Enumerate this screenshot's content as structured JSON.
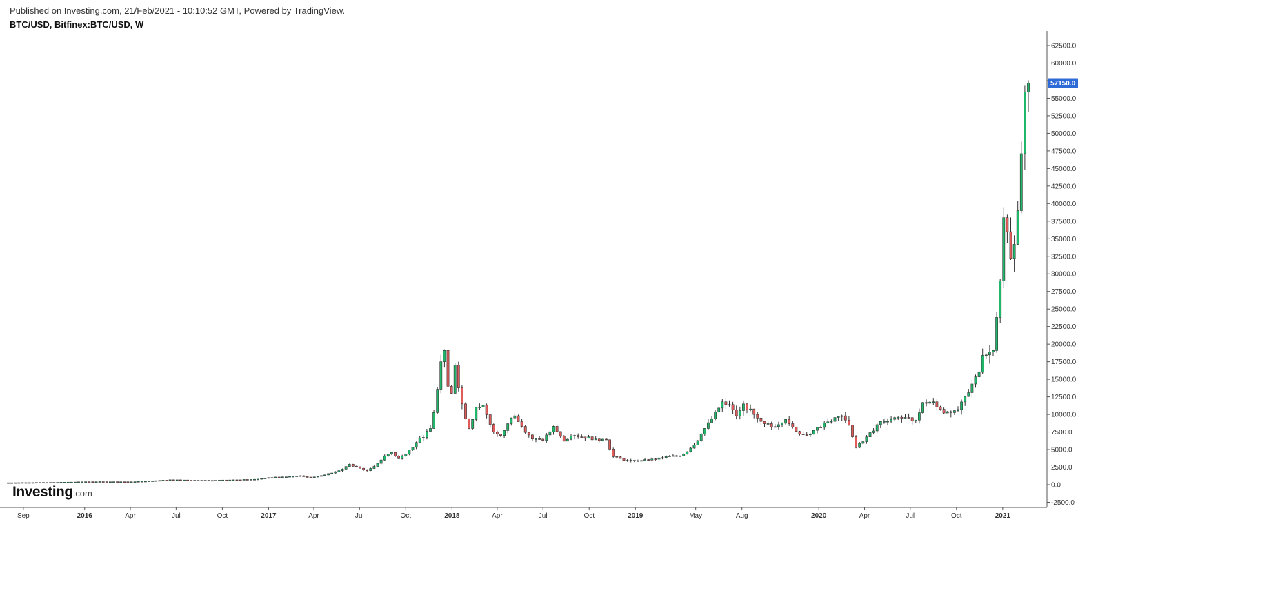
{
  "header": {
    "published": "Published on Investing.com, 21/Feb/2021 - 10:10:52 GMT, Powered by TradingView.",
    "symbol": "BTC/USD, Bitfinex:BTC/USD, W"
  },
  "logo": {
    "main": "Investing",
    "domain": ".com"
  },
  "colors": {
    "up": "#1fb86a",
    "down": "#e25b5b",
    "wick": "#333333",
    "last_price_bg": "#2f6bd6",
    "last_price_line": "#2f6bd6"
  },
  "chart_data": {
    "type": "candlestick",
    "title": "BTC/USD, Bitfinex:BTC/USD, W",
    "interval": "weekly",
    "y_axis": {
      "side": "right",
      "min": -2500,
      "max": 62500,
      "ticks": [
        "-2500.0",
        "0.0",
        "2500.0",
        "5000.0",
        "7500.0",
        "10000.0",
        "12500.0",
        "15000.0",
        "17500.0",
        "20000.0",
        "22500.0",
        "25000.0",
        "27500.0",
        "30000.0",
        "32500.0",
        "35000.0",
        "37500.0",
        "40000.0",
        "42500.0",
        "45000.0",
        "47500.0",
        "50000.0",
        "52500.0",
        "55000.0",
        "57500.0",
        "60000.0",
        "62500.0"
      ]
    },
    "x_axis": {
      "start": "2015-08-02",
      "end": "2021-02-21",
      "ticks": [
        {
          "label": "Sep",
          "date": "2015-09-01",
          "bold": false
        },
        {
          "label": "2016",
          "date": "2016-01-01",
          "bold": true
        },
        {
          "label": "Apr",
          "date": "2016-04-01",
          "bold": false
        },
        {
          "label": "Jul",
          "date": "2016-07-01",
          "bold": false
        },
        {
          "label": "Oct",
          "date": "2016-10-01",
          "bold": false
        },
        {
          "label": "2017",
          "date": "2017-01-01",
          "bold": true
        },
        {
          "label": "Apr",
          "date": "2017-04-01",
          "bold": false
        },
        {
          "label": "Jul",
          "date": "2017-07-01",
          "bold": false
        },
        {
          "label": "Oct",
          "date": "2017-10-01",
          "bold": false
        },
        {
          "label": "2018",
          "date": "2018-01-01",
          "bold": true
        },
        {
          "label": "Apr",
          "date": "2018-04-01",
          "bold": false
        },
        {
          "label": "Jul",
          "date": "2018-07-01",
          "bold": false
        },
        {
          "label": "Oct",
          "date": "2018-10-01",
          "bold": false
        },
        {
          "label": "2019",
          "date": "2019-01-01",
          "bold": true
        },
        {
          "label": "May",
          "date": "2019-05-01",
          "bold": false
        },
        {
          "label": "Aug",
          "date": "2019-08-01",
          "bold": false
        },
        {
          "label": "2020",
          "date": "2020-01-01",
          "bold": true
        },
        {
          "label": "Apr",
          "date": "2020-04-01",
          "bold": false
        },
        {
          "label": "Jul",
          "date": "2020-07-01",
          "bold": false
        },
        {
          "label": "Oct",
          "date": "2020-10-01",
          "bold": false
        },
        {
          "label": "2021",
          "date": "2021-01-01",
          "bold": true
        }
      ]
    },
    "last_price": {
      "value": 57150,
      "label": "57150.0"
    },
    "close_anchors": [
      [
        "2015-08-02",
        280
      ],
      [
        "2015-11-01",
        330
      ],
      [
        "2016-01-03",
        430
      ],
      [
        "2016-04-03",
        420
      ],
      [
        "2016-06-19",
        700
      ],
      [
        "2016-09-04",
        600
      ],
      [
        "2016-12-04",
        760
      ],
      [
        "2017-01-01",
        1000
      ],
      [
        "2017-03-05",
        1270
      ],
      [
        "2017-03-26",
        1000
      ],
      [
        "2017-05-21",
        2000
      ],
      [
        "2017-06-11",
        2900
      ],
      [
        "2017-07-16",
        2000
      ],
      [
        "2017-08-20",
        4100
      ],
      [
        "2017-09-03",
        4600
      ],
      [
        "2017-09-17",
        3700
      ],
      [
        "2017-10-22",
        6000
      ],
      [
        "2017-11-19",
        8000
      ],
      [
        "2017-12-10",
        17500
      ],
      [
        "2017-12-17",
        19100
      ],
      [
        "2017-12-24",
        14000
      ],
      [
        "2017-12-31",
        13000
      ],
      [
        "2018-01-07",
        17000
      ],
      [
        "2018-01-21",
        11500
      ],
      [
        "2018-02-04",
        8000
      ],
      [
        "2018-02-18",
        11000
      ],
      [
        "2018-03-04",
        11300
      ],
      [
        "2018-03-25",
        7500
      ],
      [
        "2018-04-08",
        7000
      ],
      [
        "2018-04-29",
        9500
      ],
      [
        "2018-05-06",
        9800
      ],
      [
        "2018-06-10",
        6500
      ],
      [
        "2018-07-01",
        6300
      ],
      [
        "2018-07-22",
        8300
      ],
      [
        "2018-08-12",
        6200
      ],
      [
        "2018-09-02",
        7000
      ],
      [
        "2018-10-14",
        6500
      ],
      [
        "2018-11-04",
        6400
      ],
      [
        "2018-11-18",
        4000
      ],
      [
        "2018-12-16",
        3400
      ],
      [
        "2019-01-27",
        3500
      ],
      [
        "2019-03-03",
        4000
      ],
      [
        "2019-03-31",
        4100
      ],
      [
        "2019-04-21",
        5200
      ],
      [
        "2019-05-19",
        8000
      ],
      [
        "2019-06-23",
        11800
      ],
      [
        "2019-07-07",
        11400
      ],
      [
        "2019-07-21",
        9800
      ],
      [
        "2019-08-04",
        11500
      ],
      [
        "2019-08-25",
        10000
      ],
      [
        "2019-09-29",
        8200
      ],
      [
        "2019-10-27",
        9300
      ],
      [
        "2019-11-24",
        7200
      ],
      [
        "2019-12-15",
        7200
      ],
      [
        "2020-01-12",
        8800
      ],
      [
        "2020-02-16",
        9800
      ],
      [
        "2020-03-01",
        8500
      ],
      [
        "2020-03-15",
        5300
      ],
      [
        "2020-04-05",
        6800
      ],
      [
        "2020-05-03",
        9000
      ],
      [
        "2020-06-07",
        9600
      ],
      [
        "2020-07-12",
        9200
      ],
      [
        "2020-07-26",
        11700
      ],
      [
        "2020-08-16",
        11800
      ],
      [
        "2020-09-06",
        10200
      ],
      [
        "2020-10-04",
        10700
      ],
      [
        "2020-10-25",
        13100
      ],
      [
        "2020-11-15",
        16000
      ],
      [
        "2020-11-22",
        18400
      ],
      [
        "2020-12-13",
        19100
      ],
      [
        "2020-12-20",
        23800
      ],
      [
        "2020-12-27",
        29000
      ],
      [
        "2021-01-03",
        38000
      ],
      [
        "2021-01-10",
        36000
      ],
      [
        "2021-01-17",
        32200
      ],
      [
        "2021-01-24",
        34200
      ],
      [
        "2021-01-31",
        39000
      ],
      [
        "2021-02-07",
        47100
      ],
      [
        "2021-02-14",
        55900
      ],
      [
        "2021-02-21",
        57150
      ]
    ]
  }
}
